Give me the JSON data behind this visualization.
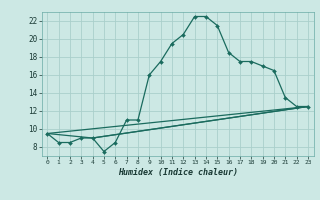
{
  "xlabel": "Humidex (Indice chaleur)",
  "bg_color": "#cce8e4",
  "grid_color": "#aacfcb",
  "line_color": "#1a6b5e",
  "xlim": [
    -0.5,
    23.5
  ],
  "ylim": [
    7.0,
    23.0
  ],
  "yticks": [
    8,
    10,
    12,
    14,
    16,
    18,
    20,
    22
  ],
  "xticks": [
    0,
    1,
    2,
    3,
    4,
    5,
    6,
    7,
    8,
    9,
    10,
    11,
    12,
    13,
    14,
    15,
    16,
    17,
    18,
    19,
    20,
    21,
    22,
    23
  ],
  "series1_x": [
    0,
    1,
    2,
    3,
    4,
    5,
    6,
    7,
    8,
    9,
    10,
    11,
    12,
    13,
    14,
    15,
    16,
    17,
    18,
    19,
    20,
    21,
    22,
    23
  ],
  "series1_y": [
    9.5,
    8.5,
    8.5,
    9.0,
    9.0,
    7.5,
    8.5,
    11.0,
    11.0,
    16.0,
    17.5,
    19.5,
    20.5,
    22.5,
    22.5,
    21.5,
    18.5,
    17.5,
    17.5,
    17.0,
    16.5,
    13.5,
    12.5,
    12.5
  ],
  "series2_x": [
    0,
    4,
    23
  ],
  "series2_y": [
    9.5,
    9.0,
    12.5
  ],
  "series3_x": [
    0,
    23
  ],
  "series3_y": [
    9.5,
    12.5
  ],
  "series4_x": [
    4,
    23
  ],
  "series4_y": [
    9.0,
    12.5
  ]
}
